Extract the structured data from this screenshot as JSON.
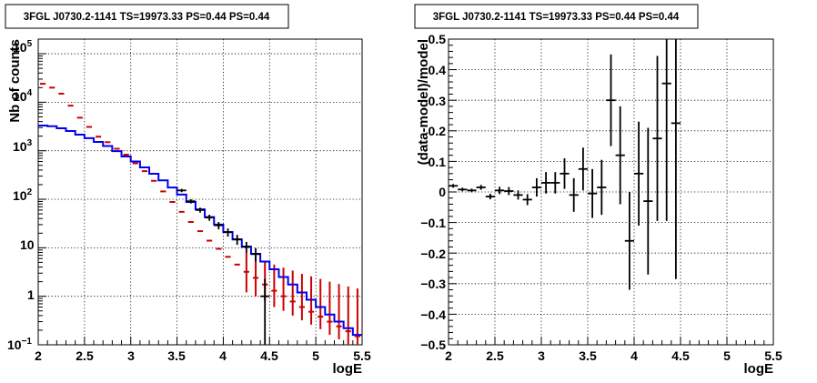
{
  "chart_data": [
    {
      "type": "line",
      "title": "3FGL J0730.2-1141 TS=19973.33 PS=0.44 PS=0.44",
      "xlabel": "logE",
      "ylabel": "Nb of counts",
      "xlim": [
        2,
        5.5
      ],
      "ylim": [
        0.1,
        200000
      ],
      "yscale": "log",
      "grid": true,
      "x_ticks": [
        "2",
        "2.5",
        "3",
        "3.5",
        "4",
        "4.5",
        "5",
        "5.5"
      ],
      "y_ticks": [
        "10^-1",
        "1",
        "10",
        "10^2",
        "10^3",
        "10^4",
        "10^5"
      ],
      "bin_edges": [
        2.0,
        2.1,
        2.2,
        2.3,
        2.4,
        2.5,
        2.6,
        2.7,
        2.8,
        2.9,
        3.0,
        3.1,
        3.2,
        3.3,
        3.4,
        3.5,
        3.6,
        3.7,
        3.8,
        3.9,
        4.0,
        4.1,
        4.2,
        4.3,
        4.4,
        4.5,
        4.6,
        4.7,
        4.8,
        4.9,
        5.0,
        5.1,
        5.2,
        5.3,
        5.4,
        5.5
      ],
      "series": [
        {
          "color": "#cc0000",
          "style": "markers",
          "values": [
            24000,
            20000,
            15000,
            8500,
            4800,
            3100,
            1950,
            1500,
            1100,
            830,
            550,
            380,
            240,
            145,
            88,
            55,
            34,
            22,
            14,
            9.5,
            6.5,
            4.5,
            3.2,
            2.4,
            1.75,
            1.3,
            1.0,
            0.78,
            0.6,
            0.48,
            0.38,
            0.3,
            0.24,
            0.19,
            0.15
          ],
          "err_low": [
            0,
            0,
            0,
            0,
            0,
            0,
            0,
            0,
            0,
            0,
            0,
            0,
            0,
            0,
            0,
            0,
            0,
            0,
            0,
            0,
            0,
            0,
            2.0,
            1.4,
            0.95,
            0.7,
            0.5,
            0.38,
            0.28,
            0.22,
            0.17,
            0.14,
            0.11,
            0.09,
            0.07
          ],
          "err_high": [
            0,
            0,
            0,
            0,
            0,
            0,
            0,
            0,
            0,
            0,
            0,
            0,
            0,
            0,
            0,
            0,
            0,
            0,
            0,
            0,
            0,
            0,
            5.0,
            4.4,
            3.6,
            3.2,
            2.9,
            2.6,
            2.3,
            2.1,
            1.9,
            1.7,
            1.55,
            1.4,
            1.3
          ]
        },
        {
          "color": "#0000ee",
          "style": "step",
          "values": [
            3300,
            3200,
            2900,
            2550,
            2150,
            1820,
            1520,
            1250,
            980,
            760,
            600,
            455,
            335,
            245,
            175,
            125,
            88,
            62,
            43,
            30,
            21,
            14.8,
            10.5,
            7.5,
            5.2,
            3.6,
            2.5,
            1.75,
            1.2,
            0.85,
            0.6,
            0.42,
            0.3,
            0.22,
            0.16
          ]
        },
        {
          "color": "#000000",
          "style": "errorbars",
          "values": [
            null,
            null,
            null,
            null,
            null,
            null,
            null,
            null,
            null,
            null,
            null,
            null,
            null,
            null,
            null,
            152,
            91,
            60,
            42,
            29,
            21,
            15,
            10.6,
            7.4,
            1.0,
            null,
            null,
            null,
            null,
            null,
            null,
            null,
            null,
            null,
            null
          ],
          "err_low": [
            null,
            null,
            null,
            null,
            null,
            null,
            null,
            null,
            null,
            null,
            null,
            null,
            null,
            null,
            null,
            12,
            9,
            7,
            6,
            5,
            4,
            3.5,
            2.6,
            2.2,
            0.9,
            null,
            null,
            null,
            null,
            null,
            null,
            null,
            null,
            null,
            null
          ],
          "err_high": [
            null,
            null,
            null,
            null,
            null,
            null,
            null,
            null,
            null,
            null,
            null,
            null,
            null,
            null,
            null,
            12,
            9,
            7,
            6,
            5,
            4,
            3.5,
            2.6,
            2.4,
            1.3,
            null,
            null,
            null,
            null,
            null,
            null,
            null,
            null,
            null,
            null
          ]
        }
      ]
    },
    {
      "type": "scatter",
      "title": "3FGL J0730.2-1141 TS=19973.33 PS=0.44 PS=0.44",
      "xlabel": "logE",
      "ylabel": "(data-model)/model",
      "xlim": [
        2,
        5.5
      ],
      "ylim": [
        -0.5,
        0.5
      ],
      "grid": true,
      "x_ticks": [
        "2",
        "2.5",
        "3",
        "3.5",
        "4",
        "4.5",
        "5",
        "5.5"
      ],
      "y_ticks": [
        "−0.5",
        "−0.4",
        "−0.3",
        "−0.2",
        "−0.1",
        "0",
        "0.1",
        "0.2",
        "0.3",
        "0.4",
        "0.5"
      ],
      "series": [
        {
          "color": "#000000",
          "x": [
            2.05,
            2.15,
            2.25,
            2.35,
            2.45,
            2.55,
            2.65,
            2.75,
            2.85,
            2.95,
            3.05,
            3.15,
            3.25,
            3.35,
            3.45,
            3.55,
            3.65,
            3.75,
            3.85,
            3.95,
            4.05,
            4.15,
            4.25,
            4.35,
            4.45
          ],
          "y": [
            0.02,
            0.008,
            0.005,
            0.015,
            -0.015,
            0.005,
            0.003,
            -0.01,
            -0.025,
            0.015,
            0.03,
            0.03,
            0.06,
            -0.01,
            0.075,
            -0.005,
            0.015,
            0.3,
            0.12,
            -0.16,
            0.06,
            -0.03,
            0.175,
            0.355,
            0.225
          ],
          "err": [
            0.006,
            0.006,
            0.006,
            0.008,
            0.009,
            0.012,
            0.013,
            0.015,
            0.018,
            0.03,
            0.035,
            0.035,
            0.05,
            0.055,
            0.07,
            0.08,
            0.09,
            0.15,
            0.16,
            0.16,
            0.17,
            0.24,
            0.27,
            0.45,
            0.51
          ]
        }
      ]
    }
  ]
}
